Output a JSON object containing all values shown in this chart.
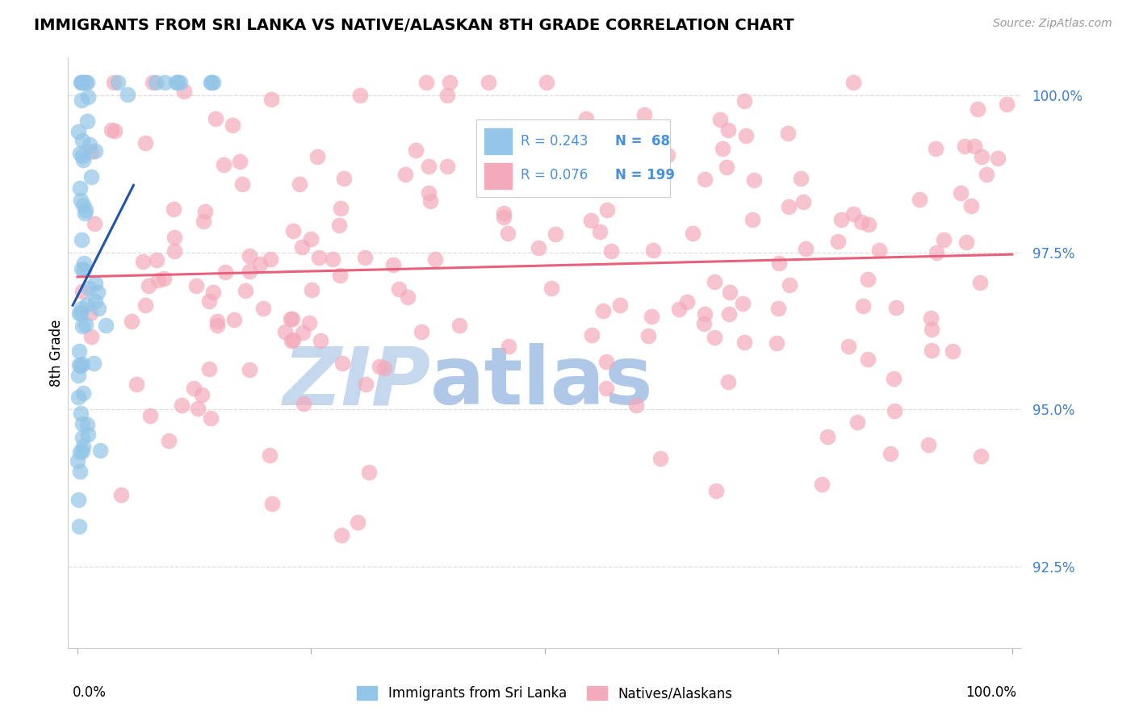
{
  "title": "IMMIGRANTS FROM SRI LANKA VS NATIVE/ALASKAN 8TH GRADE CORRELATION CHART",
  "source": "Source: ZipAtlas.com",
  "ylabel": "8th Grade",
  "y_tick_labels": [
    "92.5%",
    "95.0%",
    "97.5%",
    "100.0%"
  ],
  "y_tick_values": [
    0.925,
    0.95,
    0.975,
    1.0
  ],
  "x_lim": [
    -0.01,
    1.01
  ],
  "y_lim": [
    0.912,
    1.006
  ],
  "legend_r_blue": "R = 0.243",
  "legend_n_blue": "N =  68",
  "legend_r_pink": "R = 0.076",
  "legend_n_pink": "N = 199",
  "blue_color": "#92C5E8",
  "pink_color": "#F4AABB",
  "trend_blue_color": "#2255AA",
  "trend_pink_color": "#E8607A",
  "watermark_zip": "ZIP",
  "watermark_atlas": "atlas",
  "watermark_color_zip": "#C5D8EE",
  "watermark_color_atlas": "#B0C8E8",
  "legend_text_blue": "#4A90D9",
  "legend_text_pink": "#4A90D9",
  "grid_color": "#DDDDDD",
  "background": "#FFFFFF"
}
